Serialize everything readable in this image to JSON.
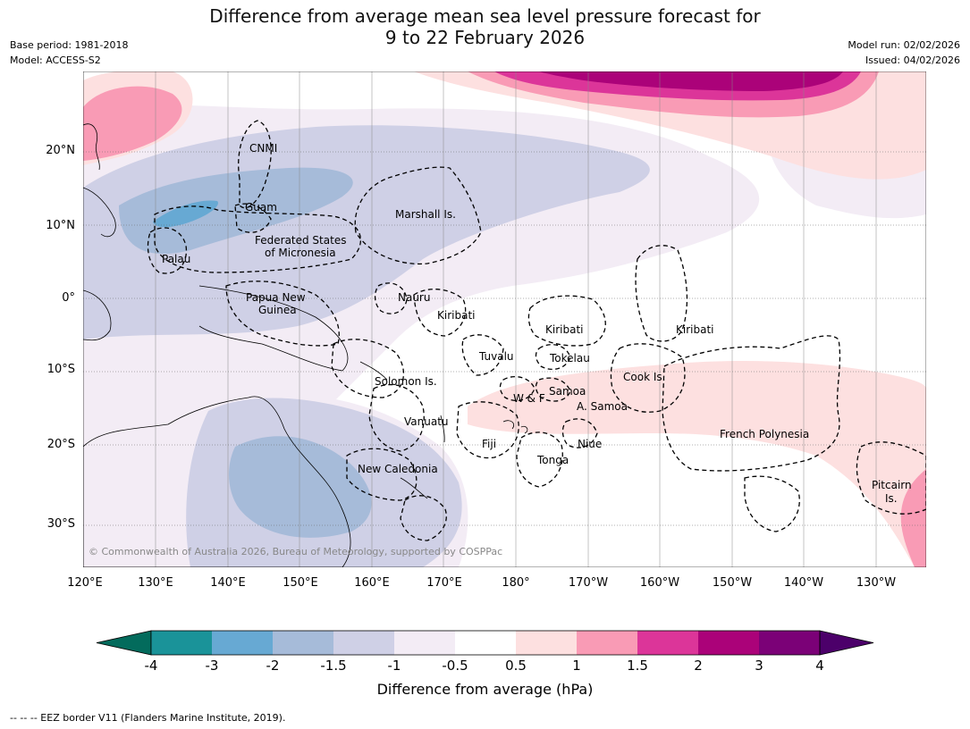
{
  "title_line1": "Difference from average mean sea level pressure forecast for",
  "title_line2": "9 to 22 February 2026",
  "meta": {
    "base_period": "Base period: 1981-2018",
    "model": "Model: ACCESS-S2",
    "model_run": "Model run: 02/02/2026",
    "issued": "Issued: 04/02/2026"
  },
  "lat_labels": [
    "20°N",
    "10°N",
    "0°",
    "10°S",
    "20°S",
    "30°S"
  ],
  "lon_labels": [
    "120°E",
    "130°E",
    "140°E",
    "150°E",
    "160°E",
    "170°E",
    "180°",
    "170°W",
    "160°W",
    "150°W",
    "140°W",
    "130°W"
  ],
  "places": {
    "cnmi": "CNMI",
    "guam": "Guam",
    "marshall": "Marshall Is.",
    "fsm_1": "Federated States",
    "fsm_2": "of Micronesia",
    "palau": "Palau",
    "png_1": "Papua New",
    "png_2": "Guinea",
    "nauru": "Nauru",
    "kiribati_w": "Kiribati",
    "kiribati_c": "Kiribati",
    "kiribati_e": "Kiribati",
    "tuvalu": "Tuvalu",
    "tokelau": "Tokelau",
    "cook": "Cook Is.",
    "solomon": "Solomon Is.",
    "wf": "W & F",
    "samoa": "Samoa",
    "asamoa": "A. Samoa",
    "vanuatu": "Vanuatu",
    "fiji": "Fiji",
    "niue": "Niue",
    "tonga": "Tonga",
    "french_polynesia": "French Polynesia",
    "pitcairn_1": "Pitcairn",
    "pitcairn_2": "Is.",
    "new_caledonia": "New Caledonia"
  },
  "copyright": "© Commonwealth of Australia 2026, Bureau of Meteorology, supported by COSPPac",
  "colorbar": {
    "ticks": [
      "-4",
      "-3",
      "-2",
      "-1.5",
      "-1",
      "-0.5",
      "0.5",
      "1",
      "1.5",
      "2",
      "3",
      "4"
    ],
    "colors": [
      "#1a9399",
      "#67a9d3",
      "#a6bbd9",
      "#cfd0e6",
      "#f3ecf5",
      "#ffffff",
      "#fde0e0",
      "#f99bb5",
      "#dc3599",
      "#ab0279",
      "#7b0177"
    ],
    "low_color": "#036b5c",
    "high_color": "#4c006a",
    "label": "Difference from average (hPa)"
  },
  "footnote": "--  --  -- EEZ border V11 (Flanders Marine Institute, 2019)."
}
